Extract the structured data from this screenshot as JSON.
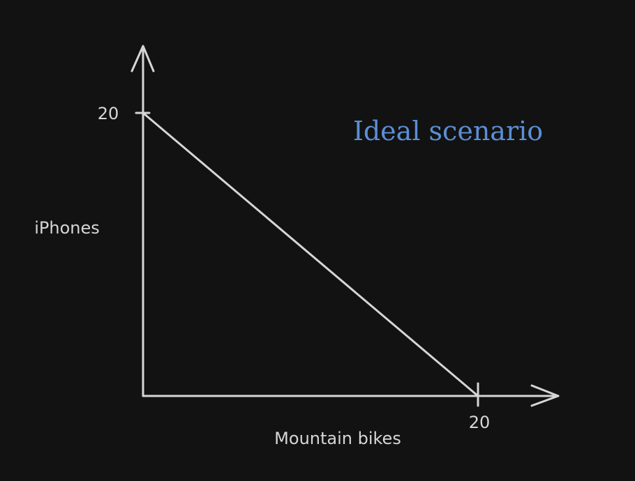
{
  "chart_data": {
    "type": "line",
    "title": "",
    "xlabel": "Mountain bikes",
    "ylabel": "iPhones",
    "xlim": [
      0,
      20
    ],
    "ylim": [
      0,
      20
    ],
    "x_tick_labels": [
      "20"
    ],
    "y_tick_labels": [
      "20"
    ],
    "series": [
      {
        "x": [
          0,
          20
        ],
        "y": [
          20,
          0
        ]
      }
    ],
    "annotation": "Ideal scenario",
    "grid": false,
    "colors": {
      "background": "#121212",
      "axes": "#d6d6d6",
      "line": "#d6d6d6",
      "annotation": "#5b8fd6"
    }
  }
}
